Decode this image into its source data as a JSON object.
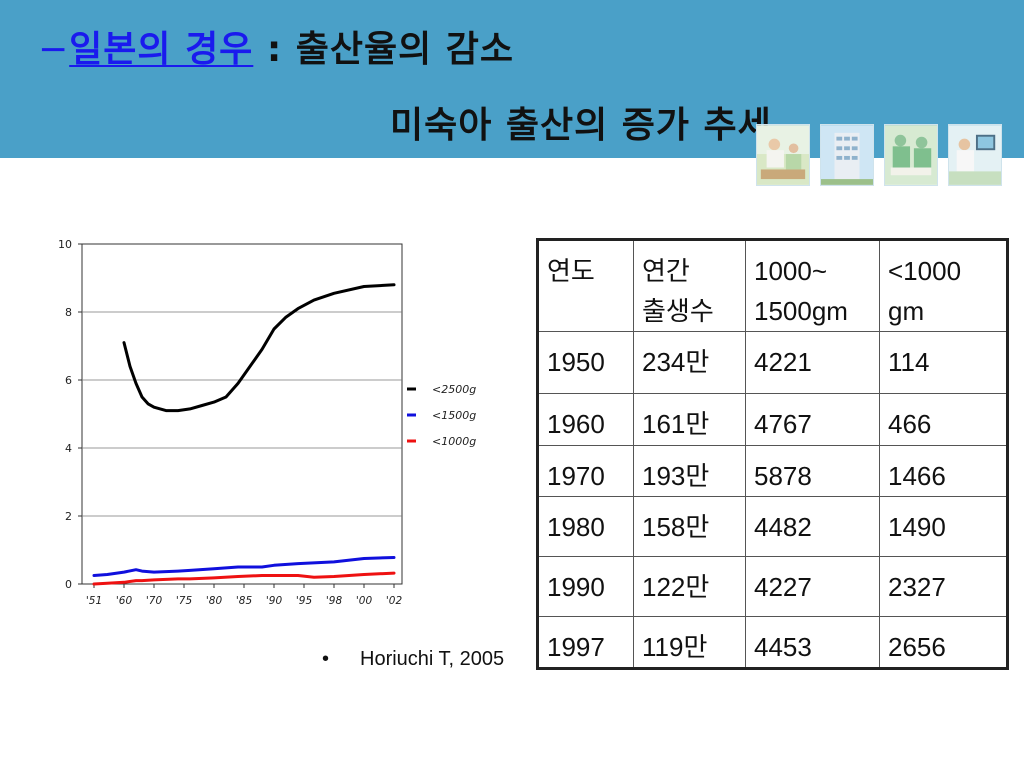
{
  "header": {
    "dash": "−",
    "title_link": "일본의 경우",
    "separator": " : ",
    "title_rest": "출산율의 감소",
    "subtitle": "미숙아 출산의 증가 추세"
  },
  "colors": {
    "header_band": "#4aa0c8",
    "link": "#1a1aee",
    "series_2500": "#000000",
    "series_1500": "#1010dd",
    "series_1000": "#ee1111"
  },
  "citation": {
    "bullet": "•",
    "text": "Horiuchi T, 2005"
  },
  "chart_data": {
    "type": "line",
    "ylim": [
      0,
      10
    ],
    "yticks": [
      "0",
      "2",
      "4",
      "6",
      "8",
      "10"
    ],
    "xtick_labels": [
      "'51",
      "'60",
      "'70",
      "'75",
      "'80",
      "'85",
      "'90",
      "'95",
      "'98",
      "'00",
      "'02"
    ],
    "grid": true,
    "legend_position": "right",
    "series": [
      {
        "name": "<2500g",
        "color": "#000000",
        "x": [
          1960,
          1962,
          1964,
          1966,
          1968,
          1970,
          1972,
          1974,
          1976,
          1978,
          1980,
          1982,
          1984,
          1986,
          1988,
          1990,
          1992,
          1994,
          1996,
          1998,
          2000,
          2002
        ],
        "y": [
          7.1,
          6.4,
          5.9,
          5.5,
          5.3,
          5.2,
          5.1,
          5.1,
          5.15,
          5.25,
          5.35,
          5.5,
          5.9,
          6.4,
          6.9,
          7.5,
          7.85,
          8.1,
          8.35,
          8.55,
          8.75,
          8.8
        ]
      },
      {
        "name": "<1500g",
        "color": "#1010dd",
        "x": [
          1951,
          1955,
          1960,
          1964,
          1966,
          1970,
          1974,
          1976,
          1980,
          1984,
          1988,
          1990,
          1994,
          1998,
          2000,
          2002
        ],
        "y": [
          0.25,
          0.28,
          0.35,
          0.42,
          0.38,
          0.35,
          0.38,
          0.4,
          0.45,
          0.5,
          0.5,
          0.55,
          0.6,
          0.65,
          0.75,
          0.78
        ]
      },
      {
        "name": "<1000g",
        "color": "#ee1111",
        "x": [
          1951,
          1955,
          1960,
          1964,
          1966,
          1970,
          1974,
          1976,
          1980,
          1984,
          1988,
          1990,
          1994,
          1996,
          1998,
          2000,
          2002
        ],
        "y": [
          0.0,
          0.02,
          0.05,
          0.1,
          0.1,
          0.12,
          0.15,
          0.15,
          0.18,
          0.22,
          0.25,
          0.25,
          0.25,
          0.2,
          0.22,
          0.28,
          0.32
        ]
      }
    ]
  },
  "table": {
    "headers": [
      [
        "연도"
      ],
      [
        "연간",
        "출생수"
      ],
      [
        "1000~",
        "1500gm"
      ],
      [
        "<1000",
        "gm"
      ]
    ],
    "rows": [
      [
        "1950",
        "234만",
        "4221",
        "114"
      ],
      [
        "1960",
        "161만",
        "4767",
        "466"
      ],
      [
        "1970",
        "193만",
        "5878",
        "1466"
      ],
      [
        "1980",
        "158만",
        "4482",
        "1490"
      ],
      [
        "1990",
        "122만",
        "4227",
        "2327"
      ],
      [
        "1997",
        "119만",
        "4453",
        "2656"
      ]
    ]
  }
}
